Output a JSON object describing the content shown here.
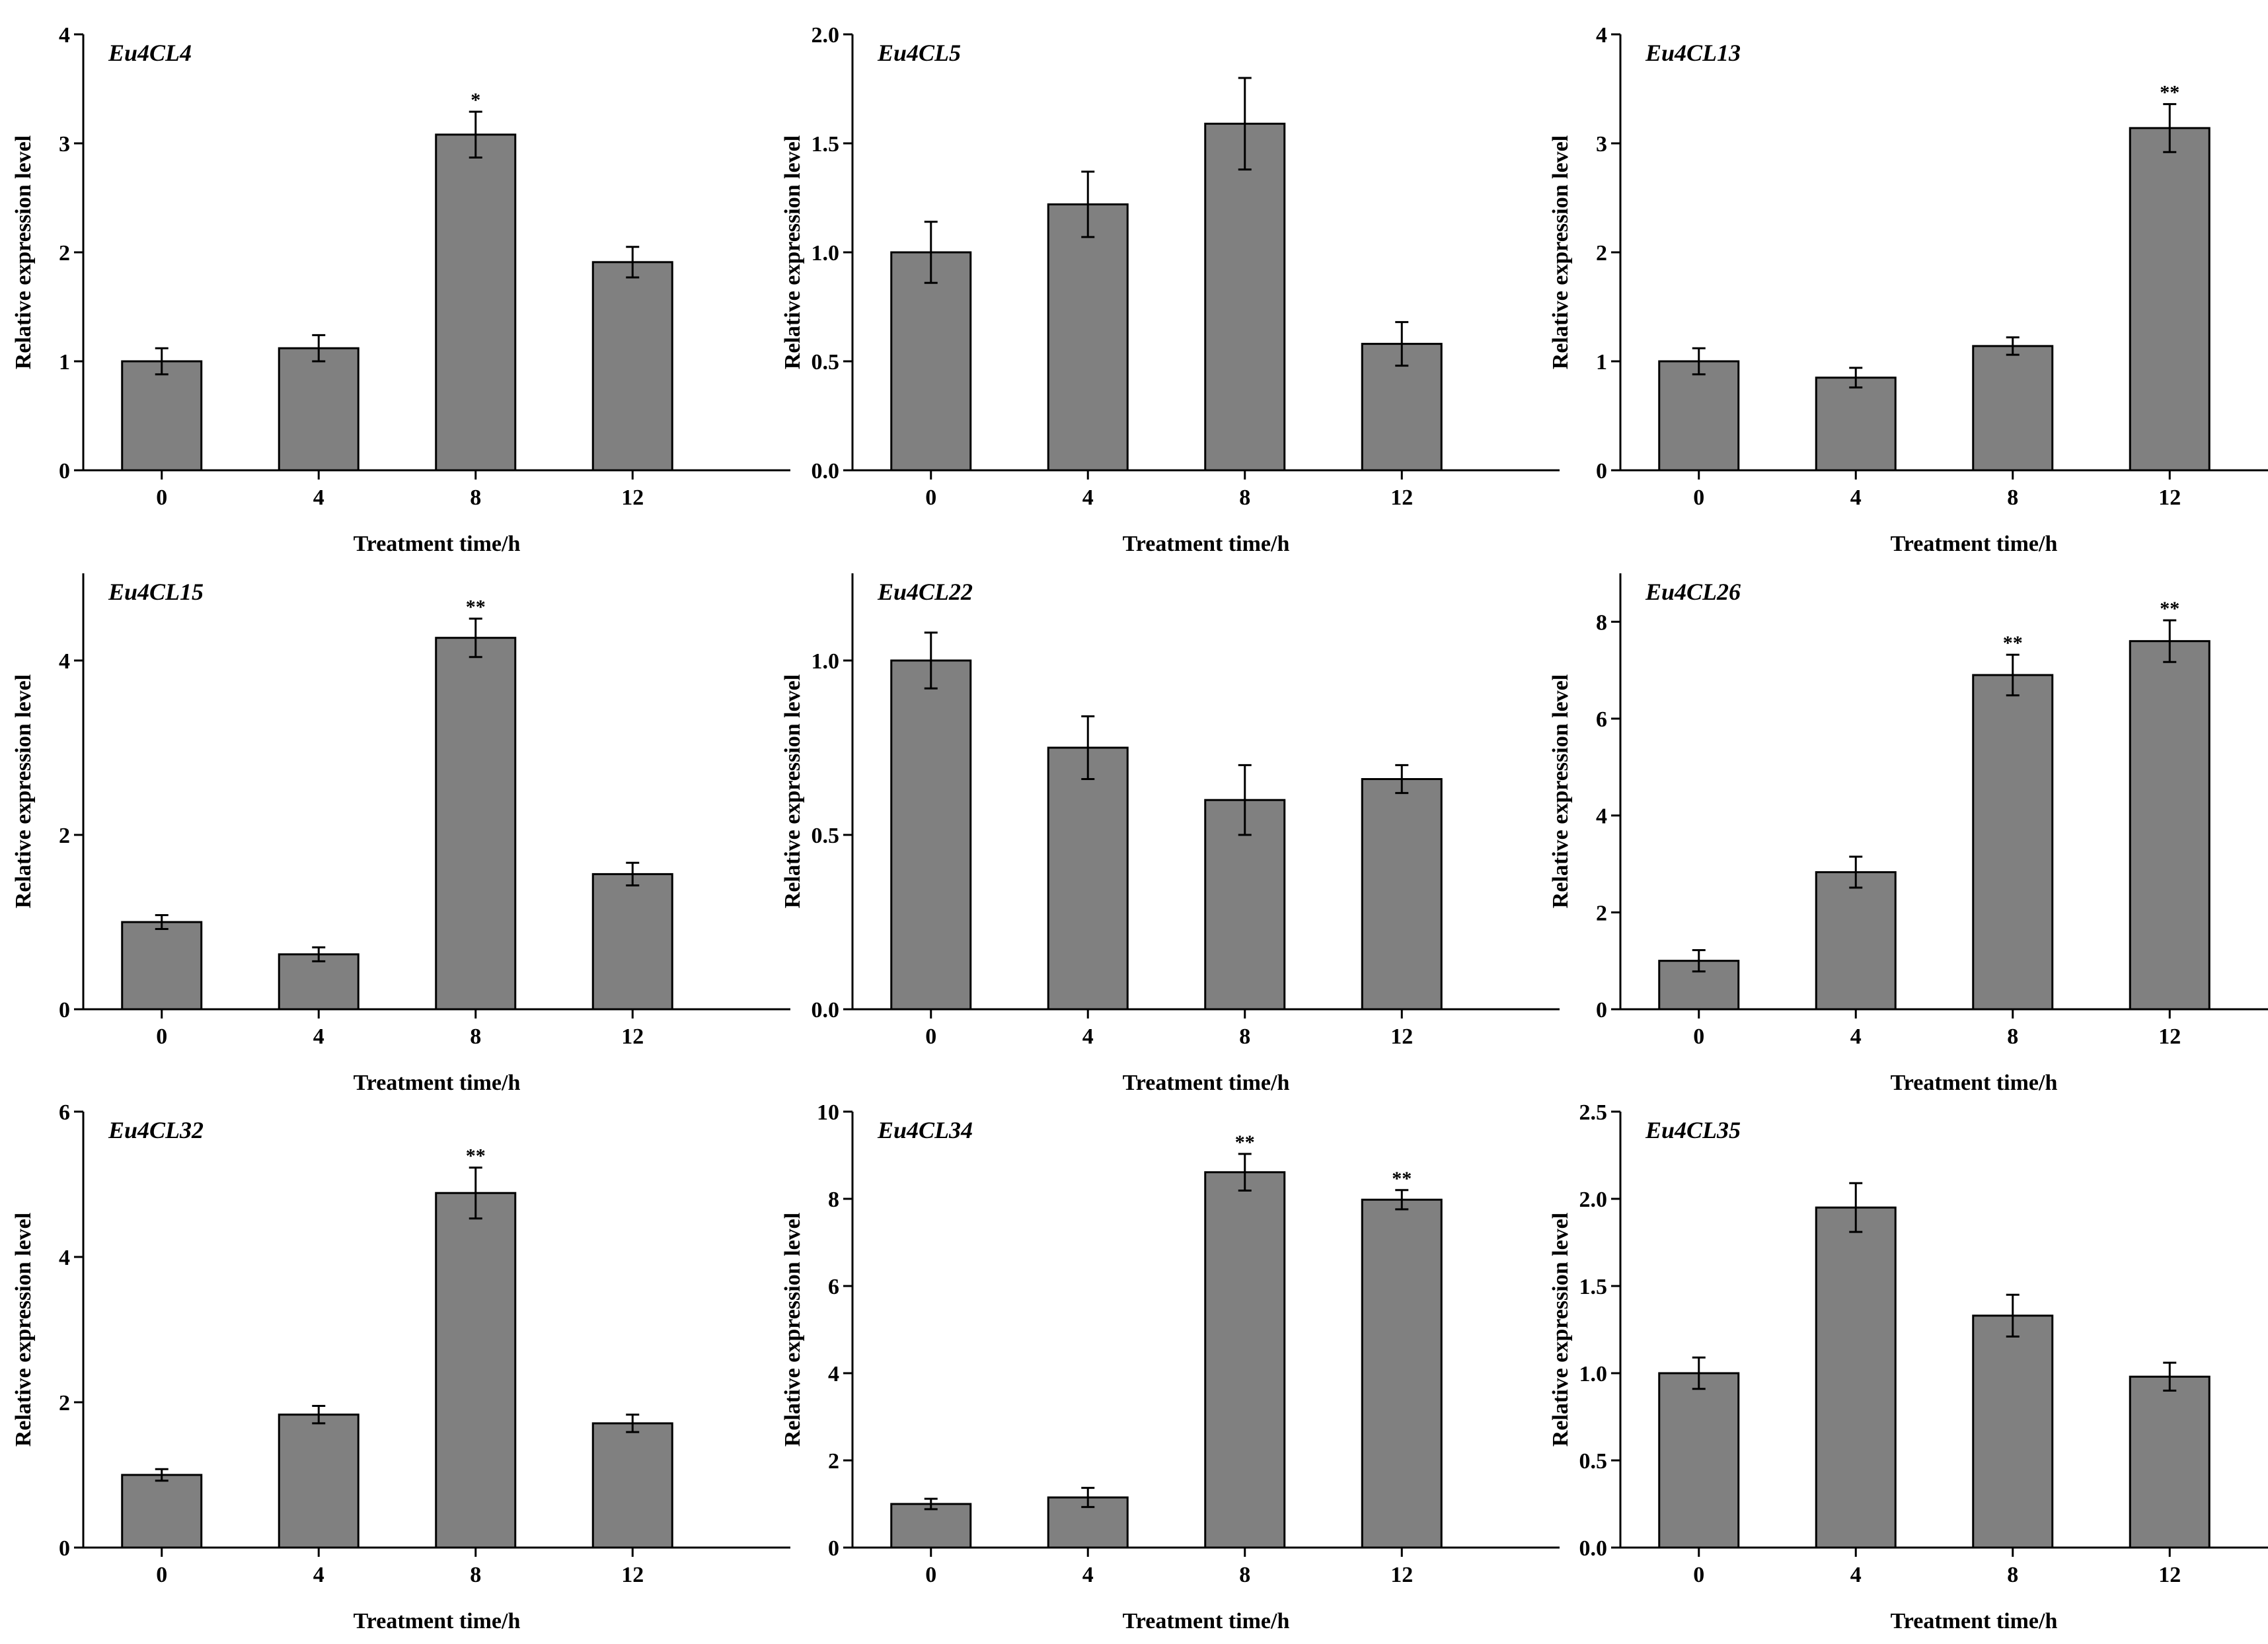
{
  "figure": {
    "bar_color": "#808080",
    "axis_color": "#000000",
    "background": "#ffffff"
  },
  "chart_data": [
    {
      "type": "bar",
      "title": "Eu4CL4",
      "xlabel": "Treatment time/h",
      "ylabel": "Relative expression level",
      "categories": [
        "0",
        "4",
        "8",
        "12"
      ],
      "values": [
        1.0,
        1.12,
        3.08,
        1.91
      ],
      "errors": [
        0.12,
        0.12,
        0.21,
        0.14
      ],
      "significance": [
        "",
        "",
        "*",
        ""
      ],
      "ylim": [
        0,
        4
      ],
      "yticks": [
        "0",
        "1",
        "2",
        "3",
        "4"
      ]
    },
    {
      "type": "bar",
      "title": "Eu4CL5",
      "xlabel": "Treatment time/h",
      "ylabel": "Relative expression level",
      "categories": [
        "0",
        "4",
        "8",
        "12"
      ],
      "values": [
        1.0,
        1.22,
        1.59,
        0.58
      ],
      "errors": [
        0.14,
        0.15,
        0.21,
        0.1
      ],
      "significance": [
        "",
        "",
        "",
        ""
      ],
      "ylim": [
        0,
        2.0
      ],
      "yticks": [
        "0.0",
        "0.5",
        "1.0",
        "1.5",
        "2.0"
      ]
    },
    {
      "type": "bar",
      "title": "Eu4CL13",
      "xlabel": "Treatment time/h",
      "ylabel": "Relative expression level",
      "categories": [
        "0",
        "4",
        "8",
        "12"
      ],
      "values": [
        1.0,
        0.85,
        1.14,
        3.14
      ],
      "errors": [
        0.12,
        0.09,
        0.08,
        0.22
      ],
      "significance": [
        "",
        "",
        "",
        "**"
      ],
      "ylim": [
        0,
        4
      ],
      "yticks": [
        "0",
        "1",
        "2",
        "3",
        "4"
      ]
    },
    {
      "type": "bar",
      "title": "Eu4CL15",
      "xlabel": "Treatment time/h",
      "ylabel": "Relative expression level",
      "categories": [
        "0",
        "4",
        "8",
        "12"
      ],
      "values": [
        1.0,
        0.63,
        4.26,
        1.55
      ],
      "errors": [
        0.08,
        0.08,
        0.22,
        0.13
      ],
      "significance": [
        "",
        "",
        "**",
        ""
      ],
      "ylim": [
        0,
        5
      ],
      "yticks": [
        "0",
        "2",
        "4"
      ]
    },
    {
      "type": "bar",
      "title": "Eu4CL22",
      "xlabel": "Treatment time/h",
      "ylabel": "Relative expression level",
      "categories": [
        "0",
        "4",
        "8",
        "12"
      ],
      "values": [
        1.0,
        0.75,
        0.6,
        0.66
      ],
      "errors": [
        0.08,
        0.09,
        0.1,
        0.04
      ],
      "significance": [
        "",
        "",
        "",
        ""
      ],
      "ylim": [
        0,
        1.25
      ],
      "yticks": [
        "0.0",
        "0.5",
        "1.0"
      ]
    },
    {
      "type": "bar",
      "title": "Eu4CL26",
      "xlabel": "Treatment time/h",
      "ylabel": "Relative expression level",
      "categories": [
        "0",
        "4",
        "8",
        "12"
      ],
      "values": [
        1.0,
        2.83,
        6.9,
        7.6
      ],
      "errors": [
        0.22,
        0.32,
        0.42,
        0.43
      ],
      "significance": [
        "",
        "",
        "**",
        "**"
      ],
      "ylim": [
        0,
        9
      ],
      "yticks": [
        "0",
        "2",
        "4",
        "6",
        "8"
      ]
    },
    {
      "type": "bar",
      "title": "Eu4CL32",
      "xlabel": "Treatment time/h",
      "ylabel": "Relative expression level",
      "categories": [
        "0",
        "4",
        "8",
        "12"
      ],
      "values": [
        1.0,
        1.83,
        4.88,
        1.71
      ],
      "errors": [
        0.08,
        0.12,
        0.35,
        0.12
      ],
      "significance": [
        "",
        "",
        "**",
        ""
      ],
      "ylim": [
        0,
        6
      ],
      "yticks": [
        "0",
        "2",
        "4",
        "6"
      ]
    },
    {
      "type": "bar",
      "title": "Eu4CL34",
      "xlabel": "Treatment time/h",
      "ylabel": "Relative expression level",
      "categories": [
        "0",
        "4",
        "8",
        "12"
      ],
      "values": [
        1.0,
        1.15,
        8.61,
        7.98
      ],
      "errors": [
        0.12,
        0.22,
        0.42,
        0.22
      ],
      "significance": [
        "",
        "",
        "**",
        "**"
      ],
      "ylim": [
        0,
        10
      ],
      "yticks": [
        "0",
        "2",
        "4",
        "6",
        "8",
        "10"
      ]
    },
    {
      "type": "bar",
      "title": "Eu4CL35",
      "xlabel": "Treatment time/h",
      "ylabel": "Relative expression level",
      "categories": [
        "0",
        "4",
        "8",
        "12"
      ],
      "values": [
        1.0,
        1.95,
        1.33,
        0.98
      ],
      "errors": [
        0.09,
        0.14,
        0.12,
        0.08
      ],
      "significance": [
        "",
        "",
        "",
        ""
      ],
      "ylim": [
        0,
        2.5
      ],
      "yticks": [
        "0.0",
        "0.5",
        "1.0",
        "1.5",
        "2.0",
        "2.5"
      ]
    }
  ]
}
